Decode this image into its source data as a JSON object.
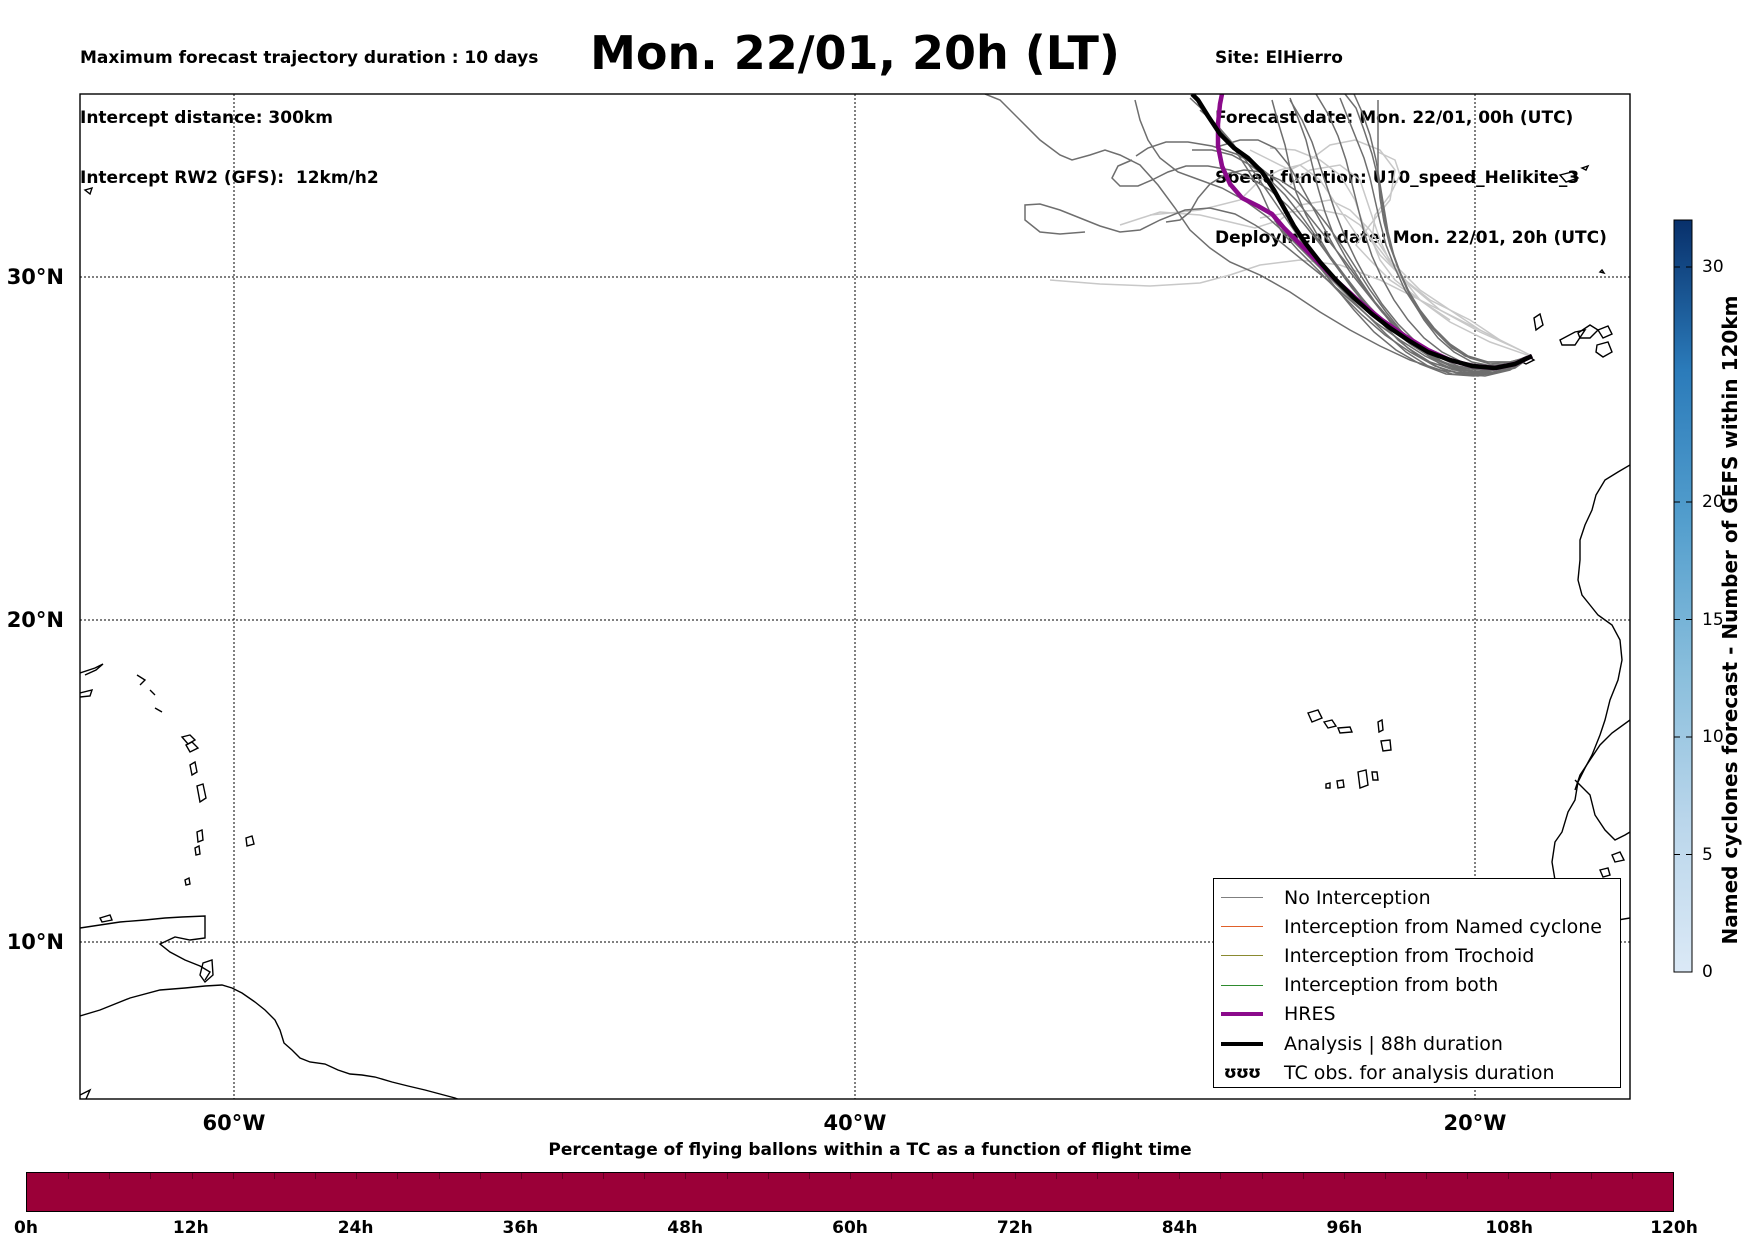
{
  "header": {
    "left_lines": [
      "Maximum forecast trajectory duration : 10 days",
      "Intercept distance: 300km",
      "Intercept RW2 (GFS):  12km/h2"
    ],
    "title": "Mon. 22/01, 20h (LT)",
    "right_lines": [
      "Site: ElHierro",
      "Forecast date: Mon. 22/01, 00h (UTC)",
      "Speed function: U10_speed_Helikite_3",
      "Deployment date: Mon. 22/01, 20h (UTC)"
    ]
  },
  "map": {
    "lat_labels": [
      "30°N",
      "20°N",
      "10°N"
    ],
    "lon_labels": [
      "60°W",
      "40°W",
      "20°W"
    ],
    "lat_range": [
      5.4,
      34.8
    ],
    "lon_range": [
      -65,
      -15
    ],
    "grid": true,
    "launch_site": {
      "name": "ElHierro",
      "lat": 27.6,
      "lon": -18.0
    },
    "colors": {
      "no_interception": "#6e6e6e",
      "ensemble_light": "#c8c8c8",
      "hres": "#8b0a8b",
      "analysis": "#000000",
      "coast": "#000000"
    }
  },
  "legend": {
    "items": [
      {
        "label": "No Interception",
        "color": "#7f7f7f",
        "width": 1.5
      },
      {
        "label": "Interception from Named cyclone",
        "color": "#e0602a",
        "width": 1.5
      },
      {
        "label": "Interception from Trochoid",
        "color": "#8a8a30",
        "width": 1.5
      },
      {
        "label": "Interception from both",
        "color": "#2e8b2e",
        "width": 1.5
      },
      {
        "label": "HRES",
        "color": "#8b0a8b",
        "width": 4
      },
      {
        "label": "Analysis | 88h duration",
        "color": "#000000",
        "width": 4
      },
      {
        "label": "TC obs. for analysis duration",
        "symbol": "ʊʊʊ"
      }
    ]
  },
  "vertical_colorbar": {
    "label": "Named cyclones forecast - Number of GEFS within 120km",
    "ticks": [
      "0",
      "5",
      "10",
      "15",
      "20",
      "30"
    ],
    "tick_values": [
      0,
      5,
      10,
      15,
      20,
      30
    ],
    "max": 32,
    "colormap": "Blues"
  },
  "horizontal_colorbar": {
    "title": "Percentage of flying ballons within a TC as a function of flight time",
    "ticks": [
      "0h",
      "12h",
      "24h",
      "36h",
      "48h",
      "60h",
      "72h",
      "84h",
      "96h",
      "108h",
      "120h"
    ],
    "color": "#9b0038"
  }
}
